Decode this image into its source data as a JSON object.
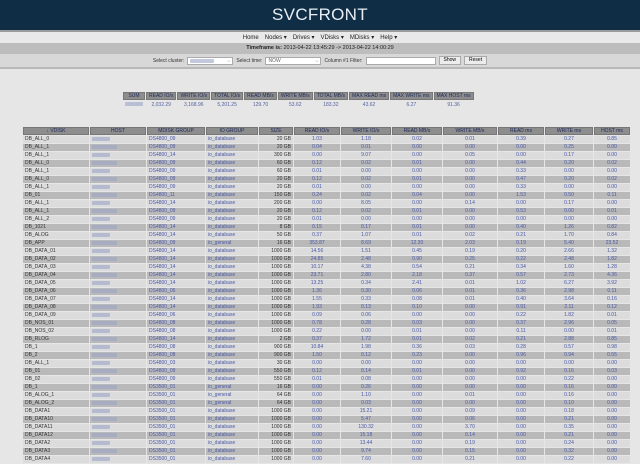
{
  "app": {
    "title": "SVCFRONT"
  },
  "nav": {
    "items": [
      {
        "label": "Home"
      },
      {
        "label": "Nodes ▾"
      },
      {
        "label": "Drives ▾"
      },
      {
        "label": "VDisks ▾"
      },
      {
        "label": "MDisks ▾"
      },
      {
        "label": "Help ▾"
      }
    ]
  },
  "timeframe": {
    "label": "Timeframe is:",
    "value": "2013-04-22 13:45:29 -> 2013-04-22 14:00:29"
  },
  "filters": {
    "cluster_label": "Select cluster:",
    "cluster_value": "",
    "time_label": "Select time:",
    "time_value": "NOW",
    "filter_label": "Column #1 Filter:",
    "filter_value": "",
    "show_label": "Show",
    "reset_label": "Reset"
  },
  "summary": {
    "headers": [
      "SUM",
      "READ IO/s",
      "WRITE IO/s",
      "TOTAL IO/s",
      "READ MB/s",
      "WRITE MB/s",
      "TOTAL MB/s",
      "MAX READ ms",
      "MAX WRITE ms",
      "MAX HOST ms"
    ],
    "values": [
      "",
      "2,032.29",
      "3,168.96",
      "5,201.25",
      "129.70",
      "53.62",
      "183.32",
      "43.62",
      "6.27",
      "91.36"
    ]
  },
  "table": {
    "headers": [
      "↓ VDISK",
      "HOST",
      "MDISK GROUP",
      "IO GROUP",
      "SIZE",
      "READ IO/s",
      "WRITE IO/s",
      "READ MB/s",
      "WRITE MB/s",
      "READ ms",
      "WRITE ms",
      "HOST ms"
    ],
    "rows": [
      [
        "DB_ALL_0",
        "",
        "DS4800_09",
        "io_database",
        "20 GB",
        "1.03",
        "1.18",
        "0.02",
        "0.01",
        "0.39",
        "0.27",
        "0.85"
      ],
      [
        "DB_ALL_1",
        "",
        "DS4800_09",
        "io_database",
        "20 GB",
        "0.04",
        "0.01",
        "0.00",
        "0.00",
        "0.00",
        "0.25",
        "0.00"
      ],
      [
        "DB_ALL_1",
        "",
        "DS4800_14",
        "io_database",
        "300 GB",
        "0.00",
        "9.07",
        "0.00",
        "0.05",
        "0.00",
        "0.17",
        "0.00"
      ],
      [
        "DB_ALL_0",
        "",
        "DS4800_09",
        "io_database",
        "60 GB",
        "0.12",
        "0.02",
        "0.01",
        "0.00",
        "0.44",
        "0.20",
        "0.02"
      ],
      [
        "DB_ALL_1",
        "",
        "DS4800_09",
        "io_database",
        "60 GB",
        "0.01",
        "0.00",
        "0.00",
        "0.00",
        "0.33",
        "0.00",
        "0.00"
      ],
      [
        "DB_ALL_0",
        "",
        "DS4800_09",
        "io_database",
        "20 GB",
        "0.12",
        "0.02",
        "0.01",
        "0.00",
        "0.47",
        "0.20",
        "0.02"
      ],
      [
        "DB_ALL_1",
        "",
        "DS4800_09",
        "io_database",
        "20 GB",
        "0.01",
        "0.00",
        "0.00",
        "0.00",
        "0.33",
        "0.00",
        "0.00"
      ],
      [
        "DB_01",
        "",
        "DS4800_11",
        "io_database",
        "150 GB",
        "0.24",
        "0.02",
        "0.04",
        "0.00",
        "1.53",
        "0.50",
        "0.11"
      ],
      [
        "DB_ALL_1",
        "",
        "DS4800_14",
        "io_database",
        "200 GB",
        "0.00",
        "8.05",
        "0.00",
        "0.14",
        "0.00",
        "0.17",
        "0.00"
      ],
      [
        "DB_ALL_1",
        "",
        "DS4800_09",
        "io_database",
        "20 GB",
        "0.12",
        "0.02",
        "0.01",
        "0.00",
        "0.53",
        "0.00",
        "0.01"
      ],
      [
        "DB_ALL_2",
        "",
        "DS4800_09",
        "io_database",
        "20 GB",
        "0.01",
        "0.00",
        "0.00",
        "0.00",
        "0.00",
        "0.00",
        "0.00"
      ],
      [
        "DB_1021",
        "",
        "DS4800_14",
        "io_database",
        "8 GB",
        "0.15",
        "0.17",
        "0.01",
        "0.00",
        "0.40",
        "1.26",
        "0.82"
      ],
      [
        "DB_ALOG",
        "",
        "DS4800_14",
        "io_database",
        "50 GB",
        "0.37",
        "1.07",
        "0.01",
        "0.02",
        "0.21",
        "1.70",
        "0.84"
      ],
      [
        "DB_APP",
        "",
        "DS4800_09",
        "io_general",
        "16 GB",
        "353.87",
        "8.69",
        "12.30",
        "2.03",
        "0.19",
        "5.40",
        "23.52"
      ],
      [
        "DB_DATA_01",
        "",
        "DS4800_14",
        "io_database",
        "1000 GB",
        "14.56",
        "1.51",
        "0.45",
        "0.19",
        "0.20",
        "2.66",
        "1.32"
      ],
      [
        "DB_DATA_02",
        "",
        "DS4800_14",
        "io_database",
        "1000 GB",
        "24.85",
        "2.48",
        "0.90",
        "0.25",
        "0.22",
        "2.48",
        "1.82"
      ],
      [
        "DB_DATA_03",
        "",
        "DS4800_14",
        "io_database",
        "1000 GB",
        "10.17",
        "4.38",
        "0.54",
        "0.21",
        "0.34",
        "1.60",
        "1.28"
      ],
      [
        "DB_DATA_04",
        "",
        "DS4800_14",
        "io_database",
        "1000 GB",
        "23.71",
        "2.80",
        "2.18",
        "0.37",
        "0.57",
        "2.73",
        "4.36"
      ],
      [
        "DB_DATA_05",
        "",
        "DS4800_14",
        "io_database",
        "1000 GB",
        "13.25",
        "0.34",
        "2.41",
        "0.01",
        "1.02",
        "6.27",
        "3.92"
      ],
      [
        "DB_DATA_06",
        "",
        "DS4800_06",
        "io_database",
        "1000 GB",
        "1.36",
        "0.30",
        "0.06",
        "0.01",
        "0.36",
        "2.98",
        "0.11"
      ],
      [
        "DB_DATA_07",
        "",
        "DS4800_14",
        "io_database",
        "1000 GB",
        "1.55",
        "0.33",
        "0.08",
        "0.01",
        "0.40",
        "3.64",
        "0.16"
      ],
      [
        "DB_DATA_08",
        "",
        "DS4800_14",
        "io_database",
        "1000 GB",
        "1.93",
        "0.13",
        "0.10",
        "0.00",
        "0.91",
        "2.11",
        "0.12"
      ],
      [
        "DB_DATA_09",
        "",
        "DS4800_06",
        "io_database",
        "1000 GB",
        "0.09",
        "0.06",
        "0.00",
        "0.00",
        "0.22",
        "1.82",
        "0.01"
      ],
      [
        "DB_NOS_01",
        "",
        "DS4800_08",
        "io_database",
        "1000 GB",
        "0.78",
        "0.28",
        "0.03",
        "0.00",
        "0.37",
        "2.96",
        "0.05"
      ],
      [
        "DB_NOS_02",
        "",
        "DS4800_08",
        "io_database",
        "1000 GB",
        "0.22",
        "0.00",
        "0.01",
        "0.00",
        "0.11",
        "0.00",
        "0.01"
      ],
      [
        "DB_RLOG",
        "",
        "DS4800_14",
        "io_database",
        "2 GB",
        "0.37",
        "1.72",
        "0.01",
        "0.02",
        "0.21",
        "2.88",
        "0.85"
      ],
      [
        "DB_1",
        "",
        "DS4800_08",
        "io_database",
        "900 GB",
        "10.84",
        "1.98",
        "0.36",
        "0.03",
        "0.28",
        "0.57",
        "0.98"
      ],
      [
        "DB_2",
        "",
        "DS4800_08",
        "io_database",
        "900 GB",
        "1.50",
        "0.12",
        "0.23",
        "0.00",
        "0.96",
        "0.94",
        "0.55"
      ],
      [
        "DB_ALL_1",
        "",
        "DS4800_03",
        "io_database",
        "30 GB",
        "0.00",
        "0.00",
        "0.00",
        "0.00",
        "0.00",
        "0.00",
        "0.00"
      ],
      [
        "DB_01",
        "",
        "DS4800_09",
        "io_database",
        "550 GB",
        "0.12",
        "0.14",
        "0.01",
        "0.00",
        "0.92",
        "0.16",
        "0.03"
      ],
      [
        "DB_02",
        "",
        "DS4800_09",
        "io_database",
        "550 GB",
        "0.01",
        "0.08",
        "0.00",
        "0.00",
        "0.00",
        "0.22",
        "0.00"
      ],
      [
        "DB_1",
        "",
        "DS3500_01",
        "io_general",
        "16 GB",
        "0.00",
        "0.26",
        "0.00",
        "0.00",
        "0.00",
        "0.16",
        "0.00"
      ],
      [
        "DB_ALOG_1",
        "",
        "DS3500_01",
        "io_general",
        "64 GB",
        "0.00",
        "1.10",
        "0.00",
        "0.01",
        "0.00",
        "0.16",
        "0.00"
      ],
      [
        "DB_ALOG_2",
        "",
        "DS3500_01",
        "io_general",
        "64 GB",
        "0.00",
        "0.03",
        "0.00",
        "0.00",
        "0.00",
        "0.10",
        "0.00"
      ],
      [
        "DB_DATA1",
        "",
        "DS3500_01",
        "io_database",
        "1000 GB",
        "0.00",
        "15.21",
        "0.00",
        "0.09",
        "0.00",
        "0.18",
        "0.00"
      ],
      [
        "DB_DATA10",
        "",
        "DS3500_01",
        "io_database",
        "1000 GB",
        "0.00",
        "5.47",
        "0.00",
        "0.06",
        "0.00",
        "0.21",
        "0.00"
      ],
      [
        "DB_DATA11",
        "",
        "DS3500_01",
        "io_database",
        "1000 GB",
        "0.00",
        "130.32",
        "0.00",
        "3.70",
        "0.00",
        "0.35",
        "0.00"
      ],
      [
        "DB_DATA12",
        "",
        "DS3500_01",
        "io_database",
        "1000 GB",
        "0.00",
        "15.18",
        "0.00",
        "0.14",
        "0.00",
        "0.21",
        "0.00"
      ],
      [
        "DB_DATA2",
        "",
        "DS3500_01",
        "io_database",
        "1000 GB",
        "0.00",
        "13.44",
        "0.00",
        "0.19",
        "0.00",
        "0.24",
        "0.00"
      ],
      [
        "DB_DATA3",
        "",
        "DS3500_01",
        "io_database",
        "1000 GB",
        "0.00",
        "9.74",
        "0.00",
        "0.15",
        "0.00",
        "0.32",
        "0.00"
      ],
      [
        "DB_DATA4",
        "",
        "DS3500_01",
        "io_database",
        "1000 GB",
        "0.00",
        "7.60",
        "0.00",
        "0.21",
        "0.00",
        "0.22",
        "0.00"
      ]
    ]
  }
}
